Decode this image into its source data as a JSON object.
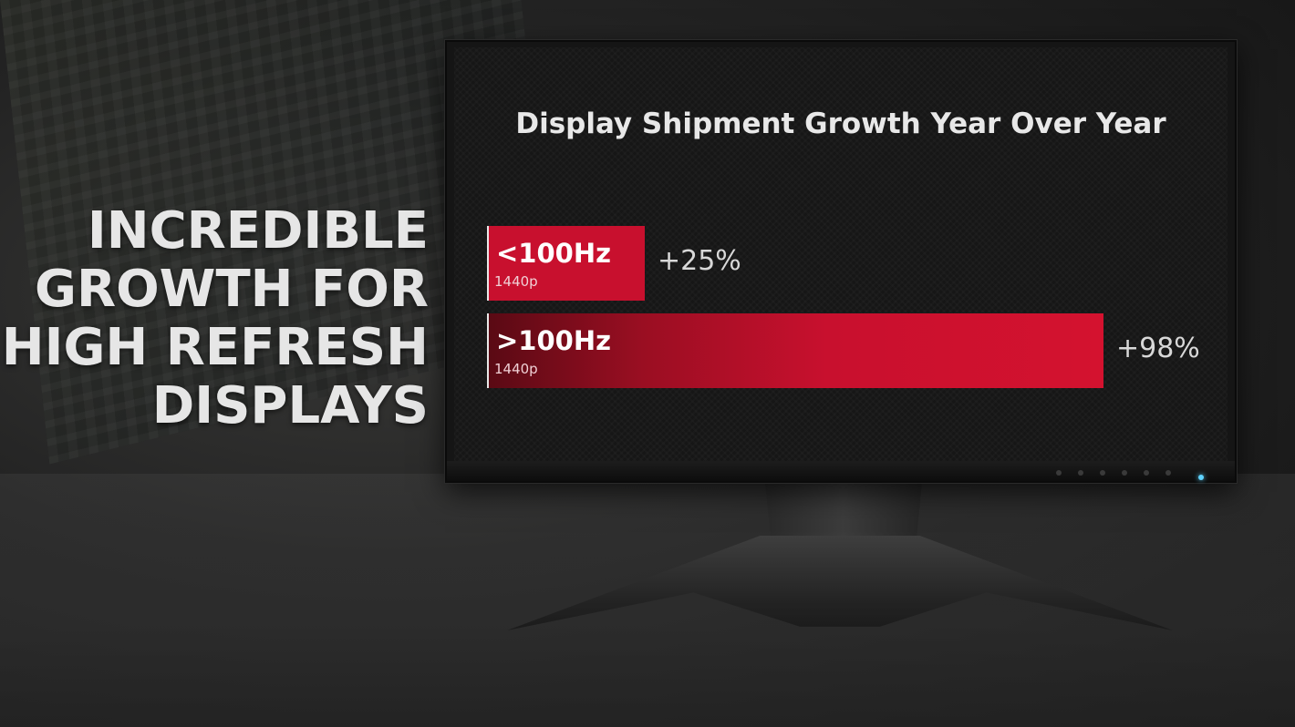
{
  "headline": [
    "INCREDIBLE",
    "GROWTH FOR",
    "HIGH REFRESH",
    "DISPLAYS"
  ],
  "chart_data": {
    "type": "bar",
    "orientation": "horizontal",
    "title": "Display Shipment Growth Year Over Year",
    "categories": [
      "<100Hz",
      ">100Hz"
    ],
    "subtitles": [
      "1440p",
      "1440p"
    ],
    "values": [
      25,
      98
    ],
    "value_labels": [
      "+25%",
      "+98%"
    ],
    "unit": "%",
    "xlim": [
      0,
      100
    ],
    "grid": false,
    "colors": [
      "#c8102e",
      "#c8102e"
    ]
  },
  "colors": {
    "accent": "#c8102e",
    "text": "#e8e8e8",
    "power_led": "#5fd3ff"
  }
}
